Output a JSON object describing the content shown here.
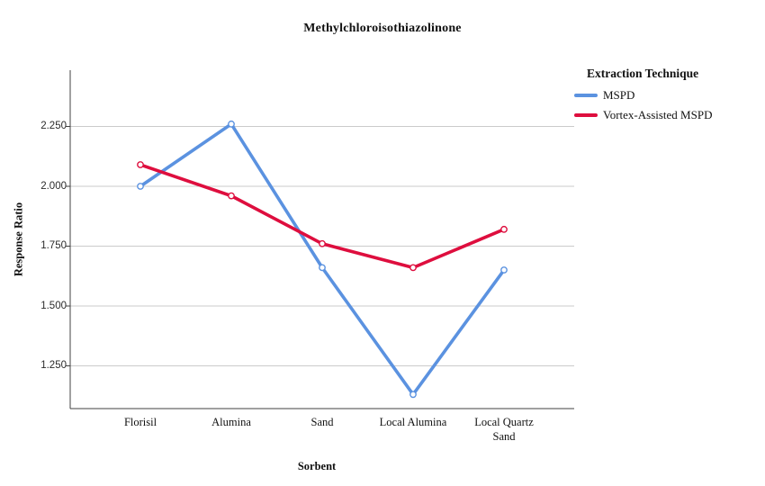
{
  "chart_data": {
    "type": "line",
    "title": "Methylchloroisothiazolinone",
    "xlabel": "Sorbent",
    "ylabel": "Response Ratio",
    "categories": [
      "Florisil",
      "Alumina",
      "Sand",
      "Local Alumina",
      "Local Quartz Sand"
    ],
    "series": [
      {
        "name": "MSPD",
        "color": "#5B92E0",
        "values": [
          2.0,
          2.26,
          1.66,
          1.13,
          1.65
        ]
      },
      {
        "name": "Vortex-Assisted MSPD",
        "color": "#DE0E3E",
        "values": [
          2.09,
          1.96,
          1.76,
          1.66,
          1.82
        ]
      }
    ],
    "yticks": [
      2.25,
      2.0,
      1.75,
      1.5,
      1.25
    ],
    "ytick_labels": [
      "2.250",
      "2.000",
      "1.750",
      "1.500",
      "1.250"
    ],
    "ylim": [
      1.071,
      2.485
    ],
    "grid": "horizontal",
    "legend_title": "Extraction Technique",
    "legend_position": "right",
    "marker": "open-circle"
  },
  "colors": {
    "background": "#ffffff",
    "axis": "#404040",
    "grid": "#cbcbcb",
    "text": "#111111"
  }
}
